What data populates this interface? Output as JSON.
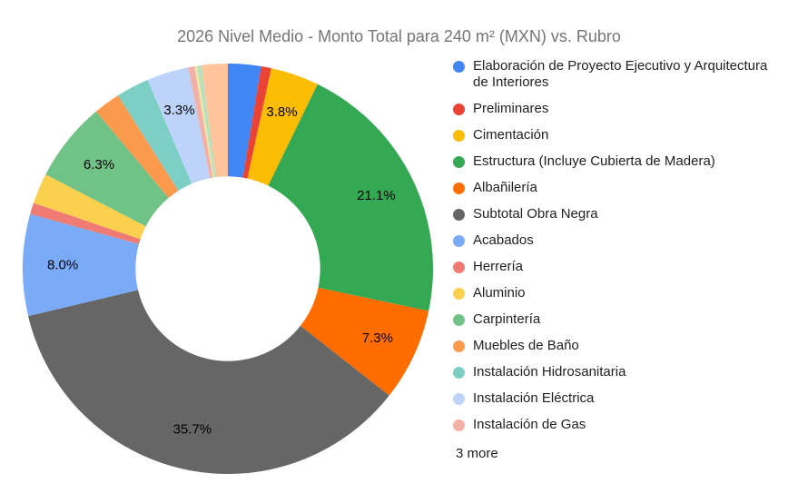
{
  "title": "2026 Nivel Medio - Monto Total para 240 m² (MXN) vs. Rubro",
  "chart_data": {
    "type": "pie",
    "donut": true,
    "donut_hole_ratio": 0.45,
    "title": "2026 Nivel Medio - Monto Total para 240 m² (MXN) vs. Rubro",
    "legend_position": "right",
    "legend_more_label": "3 more",
    "slice_label_min_pct": 3.3,
    "background": "#ffffff",
    "slices": [
      {
        "name": "Elaboración de Proyecto Ejecutivo y Arquitectura de Interiores",
        "pct": 2.6,
        "color": "#4285F4",
        "in_legend": true
      },
      {
        "name": "Preliminares",
        "pct": 0.8,
        "color": "#EA4335",
        "in_legend": true
      },
      {
        "name": "Cimentación",
        "pct": 3.8,
        "color": "#FBBC04",
        "in_legend": true
      },
      {
        "name": "Estructura (Incluye Cubierta de Madera)",
        "pct": 21.1,
        "color": "#34A853",
        "in_legend": true
      },
      {
        "name": "Albañilería",
        "pct": 7.3,
        "color": "#FF6D01",
        "in_legend": true
      },
      {
        "name": "Subtotal Obra Negra",
        "pct": 35.7,
        "color": "#666666",
        "in_legend": true
      },
      {
        "name": "Acabados",
        "pct": 8.0,
        "color": "#7BAAF7",
        "in_legend": true
      },
      {
        "name": "Herrería",
        "pct": 0.9,
        "color": "#F07B72",
        "in_legend": true
      },
      {
        "name": "Aluminio",
        "pct": 2.4,
        "color": "#FCD04F",
        "in_legend": true
      },
      {
        "name": "Carpintería",
        "pct": 6.3,
        "color": "#71C287",
        "in_legend": true
      },
      {
        "name": "Muebles de Baño",
        "pct": 2.1,
        "color": "#FB9A4D",
        "in_legend": true
      },
      {
        "name": "Instalación Hidrosanitaria",
        "pct": 2.6,
        "color": "#7DCFC6",
        "in_legend": true
      },
      {
        "name": "Instalación Eléctrica",
        "pct": 3.3,
        "color": "#BDD3F9",
        "in_legend": true
      },
      {
        "name": "Instalación de Gas",
        "pct": 0.5,
        "color": "#F4AFA7",
        "in_legend": true
      },
      {
        "name": "",
        "pct": 0.2,
        "color": "#EDE8A3",
        "in_legend": false
      },
      {
        "name": "",
        "pct": 0.35,
        "color": "#B9E0BE",
        "in_legend": false
      },
      {
        "name": "",
        "pct": 2.05,
        "color": "#FFC49C",
        "in_legend": false
      }
    ],
    "visible_slice_labels": [
      "3.8%",
      "21.1%",
      "7.3%",
      "35.7%",
      "8.0%",
      "6.3%",
      "3.3%"
    ]
  },
  "colors": {
    "title_text": "#757575",
    "legend_text": "#212121",
    "slice_label_text": "#000000"
  }
}
